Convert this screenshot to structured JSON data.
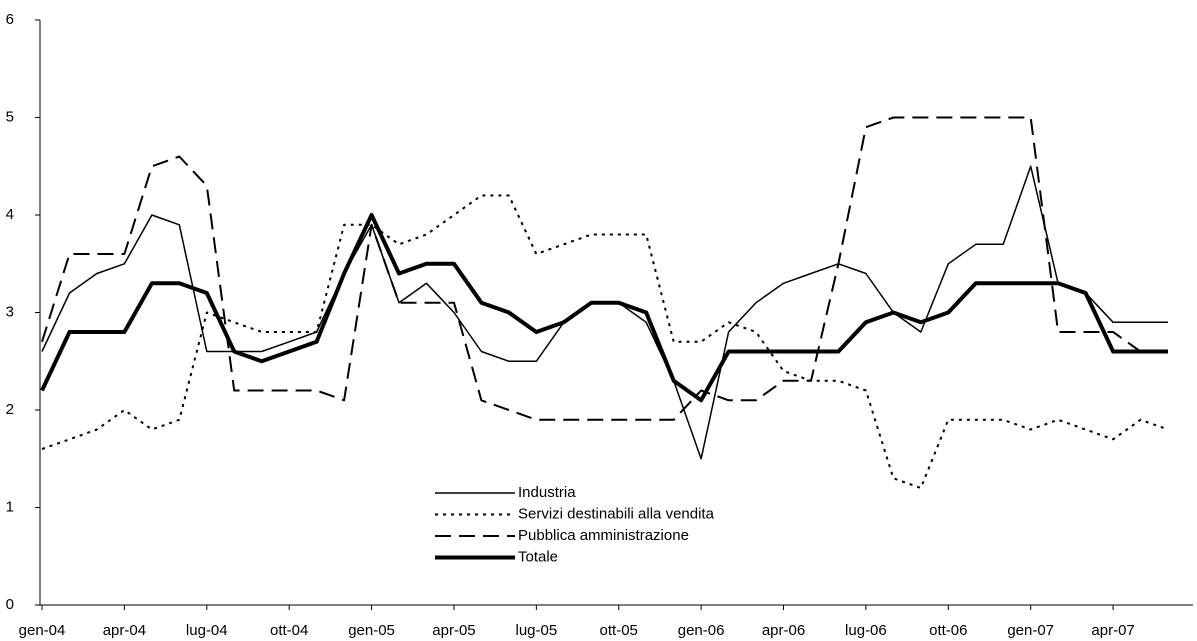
{
  "chart_data": {
    "type": "line",
    "categories": [
      "gen-04",
      null,
      null,
      "apr-04",
      null,
      null,
      "lug-04",
      null,
      null,
      "ott-04",
      null,
      null,
      "gen-05",
      null,
      null,
      "apr-05",
      null,
      null,
      "lug-05",
      null,
      null,
      "ott-05",
      null,
      null,
      "gen-06",
      null,
      null,
      "apr-06",
      null,
      null,
      "lug-06",
      null,
      null,
      "ott-06",
      null,
      null,
      "gen-07",
      null,
      null,
      "apr-07",
      null,
      null
    ],
    "series": [
      {
        "name": "Industria",
        "color": "#000000",
        "width": 1.5,
        "dash": "solid",
        "values": [
          2.6,
          3.2,
          3.4,
          3.5,
          4.0,
          3.9,
          2.6,
          2.6,
          2.6,
          2.7,
          2.8,
          3.4,
          3.9,
          3.1,
          3.3,
          3.0,
          2.6,
          2.5,
          2.5,
          2.9,
          3.1,
          3.1,
          2.9,
          2.3,
          1.5,
          2.8,
          3.1,
          3.3,
          3.4,
          3.5,
          3.4,
          3.0,
          2.8,
          3.5,
          3.7,
          3.7,
          4.5,
          3.3,
          3.2,
          2.9,
          2.9,
          2.9
        ]
      },
      {
        "name": "Servizi destinabili alla vendita",
        "color": "#000000",
        "width": 2,
        "dash": "dot",
        "values": [
          1.6,
          1.7,
          1.8,
          2.0,
          1.8,
          1.9,
          3.0,
          2.9,
          2.8,
          2.8,
          2.8,
          3.9,
          3.9,
          3.7,
          3.8,
          4.0,
          4.2,
          4.2,
          3.6,
          3.7,
          3.8,
          3.8,
          3.8,
          2.7,
          2.7,
          2.9,
          2.8,
          2.4,
          2.3,
          2.3,
          2.2,
          1.3,
          1.2,
          1.9,
          1.9,
          1.9,
          1.8,
          1.9,
          1.8,
          1.7,
          1.9,
          1.8
        ]
      },
      {
        "name": "Pubblica amministrazione",
        "color": "#000000",
        "width": 2,
        "dash": "dash",
        "values": [
          2.7,
          3.6,
          3.6,
          3.6,
          4.5,
          4.6,
          4.3,
          2.2,
          2.2,
          2.2,
          2.2,
          2.1,
          3.9,
          3.1,
          3.1,
          3.1,
          2.1,
          2.0,
          1.9,
          1.9,
          1.9,
          1.9,
          1.9,
          1.9,
          2.2,
          2.1,
          2.1,
          2.3,
          2.3,
          3.5,
          4.9,
          5.0,
          5.0,
          5.0,
          5.0,
          5.0,
          5.0,
          2.8,
          2.8,
          2.8,
          2.6,
          2.6
        ]
      },
      {
        "name": "Totale",
        "color": "#000000",
        "width": 4,
        "dash": "solid",
        "values": [
          2.2,
          2.8,
          2.8,
          2.8,
          3.3,
          3.3,
          3.2,
          2.6,
          2.5,
          2.6,
          2.7,
          3.4,
          4.0,
          3.4,
          3.5,
          3.5,
          3.1,
          3.0,
          2.8,
          2.9,
          3.1,
          3.1,
          3.0,
          2.3,
          2.1,
          2.6,
          2.6,
          2.6,
          2.6,
          2.6,
          2.9,
          3.0,
          2.9,
          3.0,
          3.3,
          3.3,
          3.3,
          3.3,
          3.2,
          2.6,
          2.6,
          2.6
        ]
      }
    ],
    "ylim": [
      0,
      6
    ],
    "yticks": [
      0,
      1,
      2,
      3,
      4,
      5,
      6
    ],
    "grid": false,
    "legend": "lower center"
  }
}
